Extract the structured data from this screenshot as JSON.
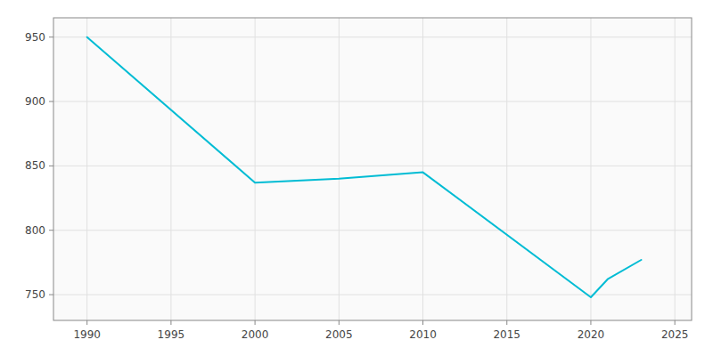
{
  "chart_data": {
    "type": "line",
    "x": [
      1990,
      2000,
      2005,
      2010,
      2020,
      2021,
      2023
    ],
    "values": [
      950,
      837,
      840,
      845,
      748,
      762,
      777
    ],
    "color": "#00bcd4",
    "xlim": [
      1988,
      2026
    ],
    "ylim": [
      730,
      965
    ],
    "xticks": [
      1990,
      1995,
      2000,
      2005,
      2010,
      2015,
      2020,
      2025
    ],
    "yticks": [
      750,
      800,
      850,
      900,
      950
    ],
    "grid": true
  }
}
